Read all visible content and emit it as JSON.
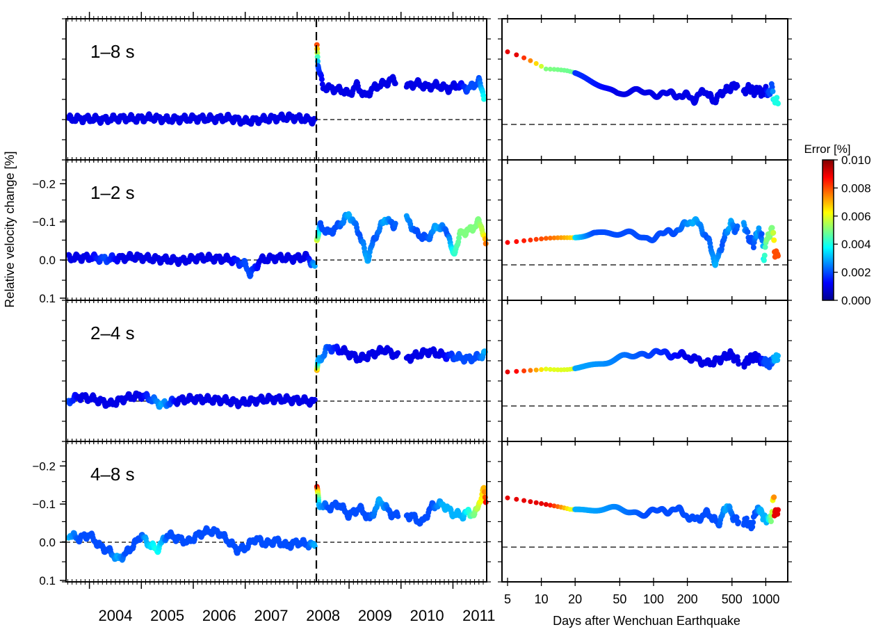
{
  "chart_data": {
    "type": "scatter",
    "ylabel": "Relative velocity change [%]",
    "left_xaxis": {
      "year_labels": [
        "2004",
        "2005",
        "2006",
        "2007",
        "2008",
        "2009",
        "2010",
        "2011"
      ],
      "xlim": [
        2003.55,
        2011.65
      ]
    },
    "right_xaxis": {
      "label": "Days after Wenchuan Earthquake",
      "tick_labels": [
        "5",
        "10",
        "20",
        "50",
        "100",
        "200",
        "500",
        "1000"
      ],
      "tick_values": [
        5,
        10,
        20,
        50,
        100,
        200,
        500,
        1000
      ],
      "xlim_days": [
        5,
        1400
      ],
      "scale": "log"
    },
    "earthquake_year": 2008.37,
    "y_ticks": {
      "values": [
        -0.2,
        -0.1,
        0.0,
        0.1
      ],
      "labels": [
        "−0.2",
        "−0.1",
        "0.0",
        "0.1"
      ]
    },
    "ylim": [
      0.1,
      -0.25
    ],
    "colorbar": {
      "title": "Error [%]",
      "range": [
        0.0,
        0.01
      ],
      "tick_labels": [
        "0.000",
        "0.002",
        "0.004",
        "0.006",
        "0.008",
        "0.010"
      ],
      "colormap": "jet"
    },
    "panels": [
      {
        "label": "1–8 s",
        "show_y_ticklabels": false,
        "pre": [
          [
            2003.6,
            -0.002,
            0.001
          ],
          [
            2004.0,
            -0.002,
            0.001
          ],
          [
            2004.3,
            0.0,
            0.001
          ],
          [
            2004.6,
            -0.004,
            0.001
          ],
          [
            2004.9,
            -0.002,
            0.001
          ],
          [
            2005.2,
            -0.005,
            0.001
          ],
          [
            2005.5,
            0.0,
            0.001
          ],
          [
            2005.8,
            -0.002,
            0.001
          ],
          [
            2006.1,
            -0.003,
            0.001
          ],
          [
            2006.4,
            -0.002,
            0.001
          ],
          [
            2006.7,
            -0.004,
            0.001
          ],
          [
            2007.0,
            0.005,
            0.001
          ],
          [
            2007.3,
            0.0,
            0.001
          ],
          [
            2007.6,
            -0.004,
            0.001
          ],
          [
            2007.9,
            -0.006,
            0.001
          ],
          [
            2008.2,
            0.0,
            0.001
          ],
          [
            2008.35,
            0.002,
            0.001
          ]
        ],
        "post": [
          [
            2008.38,
            -0.2,
            0.008
          ],
          [
            2008.4,
            -0.14,
            0.002
          ],
          [
            2008.5,
            -0.085,
            0.001
          ],
          [
            2008.7,
            -0.08,
            0.001
          ],
          [
            2008.9,
            -0.075,
            0.001
          ],
          [
            2009.0,
            -0.065,
            0.001
          ],
          [
            2009.15,
            -0.09,
            0.001
          ],
          [
            2009.3,
            -0.06,
            0.001
          ],
          [
            2009.5,
            -0.085,
            0.001
          ],
          [
            2009.7,
            -0.095,
            0.001
          ],
          [
            2009.85,
            -0.105,
            0.001
          ],
          [
            2010.1,
            -0.085,
            0.001
          ],
          [
            2010.3,
            -0.095,
            0.001
          ],
          [
            2010.5,
            -0.085,
            0.001
          ],
          [
            2010.7,
            -0.09,
            0.001
          ],
          [
            2010.9,
            -0.08,
            0.001
          ],
          [
            2011.1,
            -0.09,
            0.001
          ],
          [
            2011.3,
            -0.08,
            0.002
          ],
          [
            2011.5,
            -0.1,
            0.002
          ],
          [
            2011.6,
            -0.06,
            0.004
          ]
        ],
        "gaps": [
          [
            2009.9,
            2010.1
          ]
        ]
      },
      {
        "label": "1–2 s",
        "show_y_ticklabels": true,
        "pre": [
          [
            2003.6,
            -0.005,
            0.001
          ],
          [
            2004.0,
            -0.007,
            0.001
          ],
          [
            2004.3,
            -0.002,
            0.002
          ],
          [
            2004.6,
            -0.005,
            0.001
          ],
          [
            2004.9,
            -0.008,
            0.001
          ],
          [
            2005.2,
            -0.003,
            0.001
          ],
          [
            2005.5,
            -0.001,
            0.001
          ],
          [
            2005.8,
            0.002,
            0.001
          ],
          [
            2006.1,
            -0.006,
            0.001
          ],
          [
            2006.4,
            -0.004,
            0.001
          ],
          [
            2006.7,
            -0.002,
            0.001
          ],
          [
            2007.0,
            0.012,
            0.002
          ],
          [
            2007.1,
            0.037,
            0.002
          ],
          [
            2007.3,
            0.0,
            0.001
          ],
          [
            2007.6,
            -0.006,
            0.001
          ],
          [
            2007.9,
            -0.004,
            0.001
          ],
          [
            2008.2,
            -0.008,
            0.001
          ],
          [
            2008.35,
            0.02,
            0.003
          ]
        ],
        "post": [
          [
            2008.38,
            -0.05,
            0.006
          ],
          [
            2008.45,
            -0.09,
            0.002
          ],
          [
            2008.6,
            -0.07,
            0.002
          ],
          [
            2008.8,
            -0.09,
            0.002
          ],
          [
            2009.0,
            -0.12,
            0.003
          ],
          [
            2009.2,
            -0.07,
            0.002
          ],
          [
            2009.35,
            0.0,
            0.003
          ],
          [
            2009.5,
            -0.06,
            0.002
          ],
          [
            2009.7,
            -0.11,
            0.003
          ],
          [
            2009.85,
            -0.09,
            0.002
          ],
          [
            2010.05,
            -0.12,
            0.003
          ],
          [
            2010.3,
            -0.07,
            0.002
          ],
          [
            2010.5,
            -0.055,
            0.002
          ],
          [
            2010.7,
            -0.09,
            0.003
          ],
          [
            2010.9,
            -0.075,
            0.002
          ],
          [
            2011.0,
            -0.01,
            0.004
          ],
          [
            2011.15,
            -0.07,
            0.005
          ],
          [
            2011.35,
            -0.08,
            0.005
          ],
          [
            2011.5,
            -0.1,
            0.005
          ],
          [
            2011.6,
            -0.07,
            0.006
          ],
          [
            2011.64,
            -0.03,
            0.008
          ]
        ],
        "gaps": [
          [
            2009.9,
            2010.1
          ]
        ]
      },
      {
        "label": "2–4 s",
        "show_y_ticklabels": false,
        "pre": [
          [
            2003.6,
            0.0,
            0.002
          ],
          [
            2003.8,
            -0.012,
            0.001
          ],
          [
            2004.1,
            -0.005,
            0.001
          ],
          [
            2004.4,
            0.008,
            0.001
          ],
          [
            2004.7,
            -0.008,
            0.001
          ],
          [
            2005.0,
            -0.015,
            0.001
          ],
          [
            2005.2,
            -0.005,
            0.002
          ],
          [
            2005.4,
            0.01,
            0.003
          ],
          [
            2005.7,
            -0.002,
            0.001
          ],
          [
            2006.0,
            -0.006,
            0.001
          ],
          [
            2006.3,
            -0.004,
            0.001
          ],
          [
            2006.6,
            -0.002,
            0.001
          ],
          [
            2006.9,
            0.005,
            0.001
          ],
          [
            2007.2,
            -0.002,
            0.001
          ],
          [
            2007.5,
            -0.006,
            0.001
          ],
          [
            2007.8,
            -0.004,
            0.001
          ],
          [
            2008.1,
            -0.002,
            0.001
          ],
          [
            2008.35,
            0.003,
            0.001
          ]
        ],
        "post": [
          [
            2008.38,
            -0.08,
            0.007
          ],
          [
            2008.4,
            -0.1,
            0.003
          ],
          [
            2008.6,
            -0.14,
            0.002
          ],
          [
            2008.9,
            -0.13,
            0.001
          ],
          [
            2009.2,
            -0.11,
            0.001
          ],
          [
            2009.5,
            -0.125,
            0.001
          ],
          [
            2009.7,
            -0.135,
            0.001
          ],
          [
            2009.95,
            -0.115,
            0.001
          ],
          [
            2010.1,
            -0.11,
            0.001
          ],
          [
            2010.3,
            -0.12,
            0.001
          ],
          [
            2010.55,
            -0.13,
            0.001
          ],
          [
            2010.8,
            -0.12,
            0.001
          ],
          [
            2011.05,
            -0.115,
            0.002
          ],
          [
            2011.3,
            -0.11,
            0.002
          ],
          [
            2011.5,
            -0.115,
            0.002
          ],
          [
            2011.62,
            -0.125,
            0.003
          ]
        ],
        "gaps": [
          [
            2009.95,
            2010.1
          ]
        ]
      },
      {
        "label": "4–8 s",
        "show_y_ticklabels": true,
        "pre": [
          [
            2003.6,
            -0.02,
            0.003
          ],
          [
            2003.8,
            -0.01,
            0.002
          ],
          [
            2004.0,
            -0.02,
            0.002
          ],
          [
            2004.2,
            0.01,
            0.002
          ],
          [
            2004.4,
            0.025,
            0.002
          ],
          [
            2004.55,
            0.045,
            0.003
          ],
          [
            2004.7,
            0.03,
            0.002
          ],
          [
            2004.9,
            0.0,
            0.002
          ],
          [
            2005.0,
            -0.02,
            0.002
          ],
          [
            2005.1,
            0.0,
            0.003
          ],
          [
            2005.3,
            0.02,
            0.004
          ],
          [
            2005.5,
            -0.02,
            0.002
          ],
          [
            2005.7,
            -0.01,
            0.002
          ],
          [
            2005.9,
            0.0,
            0.002
          ],
          [
            2006.1,
            -0.02,
            0.002
          ],
          [
            2006.3,
            -0.03,
            0.002
          ],
          [
            2006.5,
            -0.025,
            0.002
          ],
          [
            2006.7,
            0.0,
            0.002
          ],
          [
            2006.85,
            0.02,
            0.002
          ],
          [
            2007.0,
            0.015,
            0.002
          ],
          [
            2007.2,
            -0.01,
            0.002
          ],
          [
            2007.4,
            0.005,
            0.002
          ],
          [
            2007.6,
            -0.005,
            0.002
          ],
          [
            2007.8,
            0.01,
            0.002
          ],
          [
            2008.0,
            0.0,
            0.002
          ],
          [
            2008.2,
            0.005,
            0.002
          ],
          [
            2008.35,
            0.01,
            0.003
          ]
        ],
        "post": [
          [
            2008.38,
            -0.14,
            0.009
          ],
          [
            2008.42,
            -0.1,
            0.003
          ],
          [
            2008.6,
            -0.09,
            0.002
          ],
          [
            2008.8,
            -0.1,
            0.002
          ],
          [
            2009.0,
            -0.07,
            0.002
          ],
          [
            2009.2,
            -0.09,
            0.002
          ],
          [
            2009.4,
            -0.06,
            0.002
          ],
          [
            2009.6,
            -0.11,
            0.003
          ],
          [
            2009.8,
            -0.075,
            0.002
          ],
          [
            2010.0,
            -0.065,
            0.002
          ],
          [
            2010.2,
            -0.07,
            0.002
          ],
          [
            2010.4,
            -0.05,
            0.002
          ],
          [
            2010.6,
            -0.095,
            0.002
          ],
          [
            2010.8,
            -0.1,
            0.003
          ],
          [
            2011.0,
            -0.075,
            0.003
          ],
          [
            2011.2,
            -0.07,
            0.003
          ],
          [
            2011.3,
            -0.08,
            0.004
          ],
          [
            2011.42,
            -0.07,
            0.005
          ],
          [
            2011.52,
            -0.11,
            0.006
          ],
          [
            2011.6,
            -0.14,
            0.007
          ],
          [
            2011.64,
            -0.09,
            0.009
          ]
        ],
        "gaps": [
          [
            2009.95,
            2010.1
          ]
        ]
      }
    ]
  }
}
